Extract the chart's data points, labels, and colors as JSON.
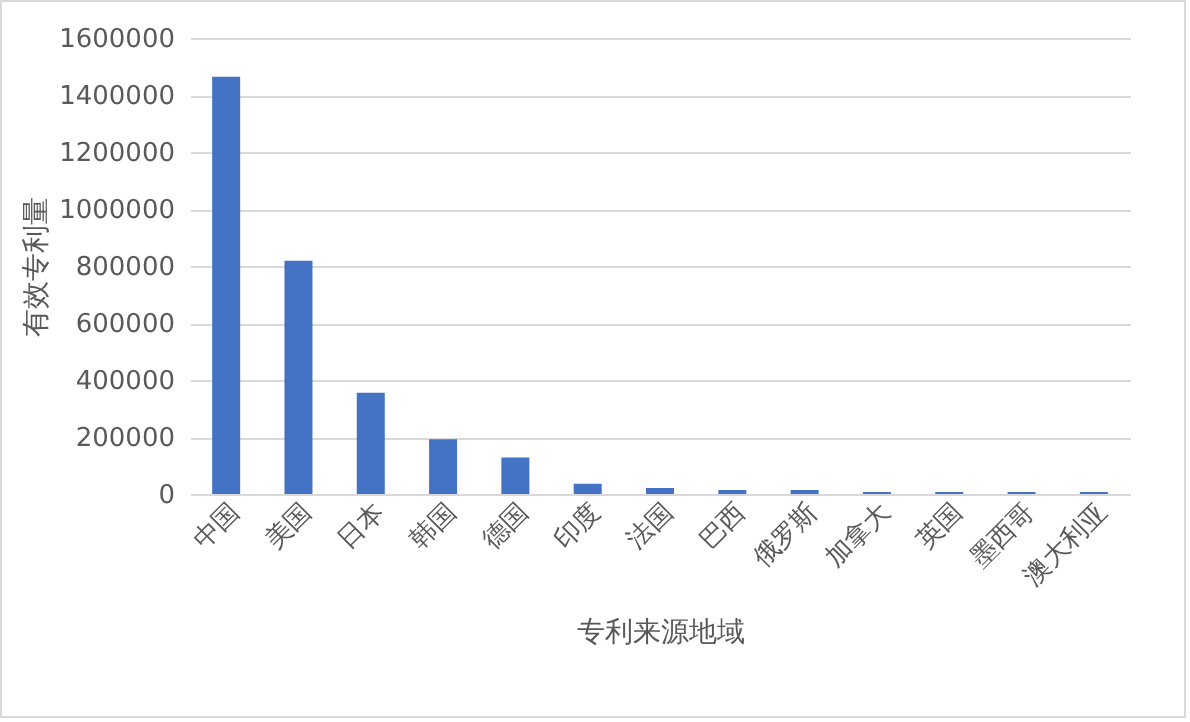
{
  "chart_data": {
    "type": "bar",
    "xlabel": "专利来源地域",
    "ylabel": "有效专利量",
    "categories": [
      "中国",
      "美国",
      "日本",
      "韩国",
      "德国",
      "印度",
      "法国",
      "巴西",
      "俄罗斯",
      "加拿大",
      "英国",
      "墨西哥",
      "澳大利亚"
    ],
    "values": [
      1464000,
      818000,
      355000,
      192000,
      128000,
      36000,
      21000,
      14000,
      14000,
      7000,
      7000,
      7000,
      7000
    ],
    "color": "#4472c4",
    "ylim": [
      0,
      1600000
    ],
    "yticks": [
      0,
      200000,
      400000,
      600000,
      800000,
      1000000,
      1200000,
      1400000,
      1600000
    ],
    "grid": "y"
  }
}
